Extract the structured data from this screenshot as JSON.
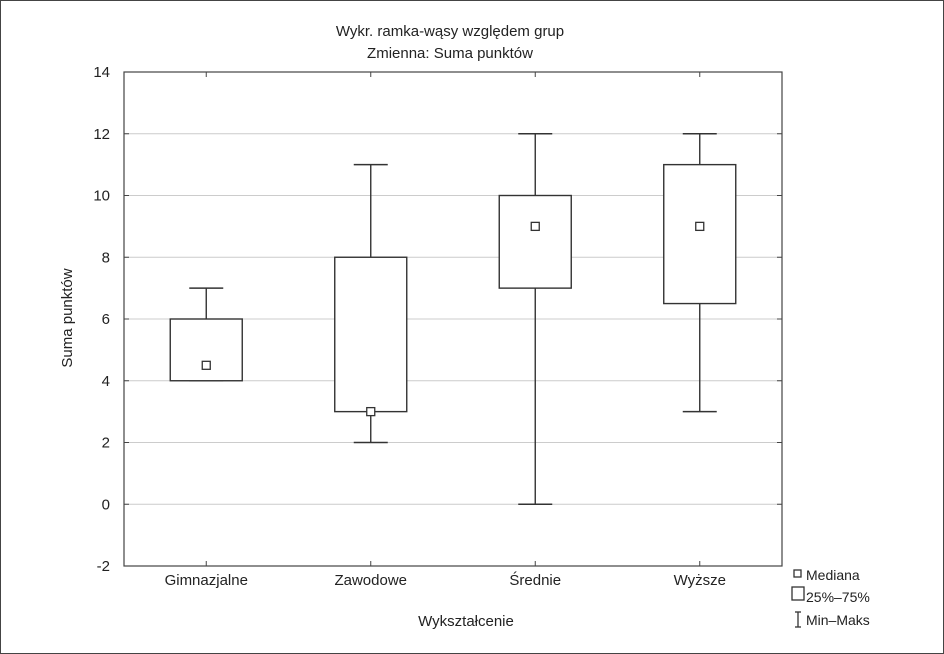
{
  "chart_data": {
    "type": "boxplot",
    "title": "Wykr. ramka-wąsy względem grup",
    "subtitle": "Zmienna: Suma punktów",
    "xlabel": "Wykształcenie",
    "ylabel": "Suma punktów",
    "ylim": [
      -2,
      14
    ],
    "y_ticks": [
      "-2",
      "0",
      "2",
      "4",
      "6",
      "8",
      "10",
      "12",
      "14"
    ],
    "grid": true,
    "legend_position": "bottom-right, outside plot",
    "categories": [
      "Gimnazjalne",
      "Zawodowe",
      "Średnie",
      "Wyższe"
    ],
    "boxes": [
      {
        "category": "Gimnazjalne",
        "min": 4,
        "q1": 4,
        "median": 4.5,
        "q3": 6,
        "max": 7
      },
      {
        "category": "Zawodowe",
        "min": 2,
        "q1": 3,
        "median": 3,
        "q3": 8,
        "max": 11
      },
      {
        "category": "Średnie",
        "min": 0,
        "q1": 7,
        "median": 9,
        "q3": 10,
        "max": 12
      },
      {
        "category": "Wyższe",
        "min": 3,
        "q1": 6.5,
        "median": 9,
        "q3": 11,
        "max": 12
      }
    ],
    "legend": [
      "Mediana",
      "25%–75%",
      "Min–Maks"
    ],
    "colors": {
      "box_stroke": "#333333",
      "grid": "#cccccc",
      "axis": "#444444"
    }
  }
}
